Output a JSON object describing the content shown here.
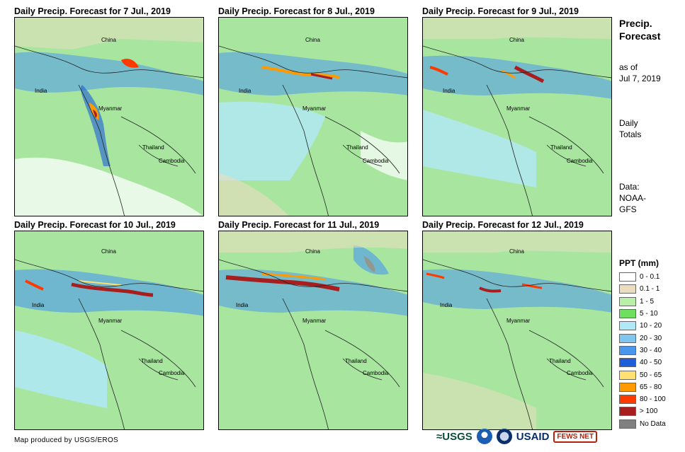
{
  "panels": [
    {
      "title": "Daily Precip. Forecast for 7 Jul., 2019",
      "labels": {
        "china": "China",
        "india": "India",
        "myanmar": "Myanmar",
        "thailand": "Thailand",
        "cambodia": "Cambodia"
      }
    },
    {
      "title": "Daily Precip. Forecast for 8 Jul., 2019",
      "labels": {
        "china": "China",
        "india": "India",
        "myanmar": "Myanmar",
        "thailand": "Thailand",
        "cambodia": "Cambodia"
      }
    },
    {
      "title": "Daily Precip. Forecast for 9 Jul., 2019",
      "labels": {
        "china": "China",
        "india": "India",
        "myanmar": "Myanmar",
        "thailand": "Thailand",
        "cambodia": "Cambodia"
      }
    },
    {
      "title": "Daily Precip. Forecast for 10 Jul., 2019",
      "labels": {
        "china": "China",
        "india": "India",
        "myanmar": "Myanmar",
        "thailand": "Thailand",
        "cambodia": "Cambodia"
      }
    },
    {
      "title": "Daily Precip. Forecast for 11 Jul., 2019",
      "labels": {
        "china": "China",
        "india": "India",
        "myanmar": "Myanmar",
        "thailand": "Thailand",
        "cambodia": "Cambodia"
      }
    },
    {
      "title": "Daily Precip. Forecast for 12 Jul., 2019",
      "labels": {
        "china": "China",
        "india": "India",
        "myanmar": "Myanmar",
        "thailand": "Thailand",
        "cambodia": "Cambodia"
      }
    }
  ],
  "side": {
    "title_line1": "Precip.",
    "title_line2": "Forecast",
    "asof_line1": "as of",
    "asof_line2": "Jul 7, 2019",
    "totals_line1": "Daily",
    "totals_line2": "Totals",
    "data_line1": "Data:",
    "data_line2": "NOAA-",
    "data_line3": "GFS"
  },
  "legend": {
    "title": "PPT (mm)",
    "items": [
      {
        "label": "0 - 0.1",
        "color": "#ffffff"
      },
      {
        "label": "0.1 - 1",
        "color": "#ecdcc0"
      },
      {
        "label": "1 - 5",
        "color": "#b8f0a8"
      },
      {
        "label": "5 - 10",
        "color": "#6ee060"
      },
      {
        "label": "10 - 20",
        "color": "#b0e8f8"
      },
      {
        "label": "20 - 30",
        "color": "#80c4f0"
      },
      {
        "label": "30 - 40",
        "color": "#4a98ec"
      },
      {
        "label": "40 - 50",
        "color": "#1e5ed8"
      },
      {
        "label": "50 - 65",
        "color": "#ffe070"
      },
      {
        "label": "65 - 80",
        "color": "#ff9a00"
      },
      {
        "label": "80 - 100",
        "color": "#ff3a00"
      },
      {
        "label": "> 100",
        "color": "#a81e1e"
      },
      {
        "label": "No Data",
        "color": "#808080"
      }
    ]
  },
  "footer": {
    "credit": "Map produced by USGS/EROS",
    "logo_usgs": "≈USGS",
    "logo_usaid": "USAID",
    "logo_fews": "FEWS NET"
  }
}
